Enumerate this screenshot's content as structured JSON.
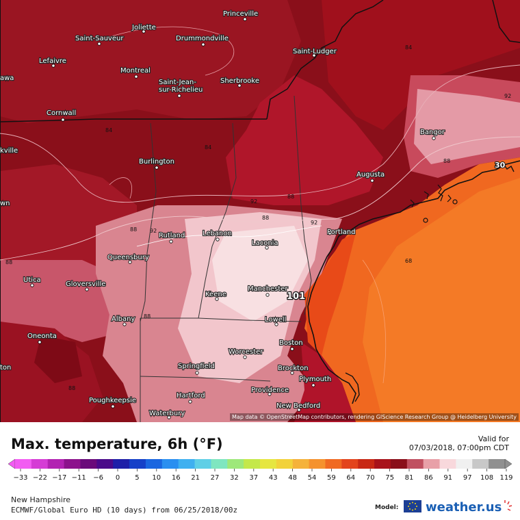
{
  "map": {
    "cities": [
      {
        "name": "Princeville"
      },
      {
        "name": "Joliette"
      },
      {
        "name": "Saint-Sauveur"
      },
      {
        "name": "Drummondville"
      },
      {
        "name": "Lefaivre"
      },
      {
        "name": "Montreal"
      },
      {
        "name": "Saint-Jean-"
      },
      {
        "name": "sur-Richelieu"
      },
      {
        "name": "Sherbrooke"
      },
      {
        "name": "Saint-Ludger"
      },
      {
        "name": "Cornwall"
      },
      {
        "name": "Bangor"
      },
      {
        "name": "Burlington"
      },
      {
        "name": "Augusta"
      },
      {
        "name": "Rutland"
      },
      {
        "name": "Lebanon"
      },
      {
        "name": "Laconia"
      },
      {
        "name": "Portland"
      },
      {
        "name": "Queensbury"
      },
      {
        "name": "Utica"
      },
      {
        "name": "Gloversville"
      },
      {
        "name": "Keene"
      },
      {
        "name": "Manchester"
      },
      {
        "name": "Albany"
      },
      {
        "name": "Lowell"
      },
      {
        "name": "Oneonta"
      },
      {
        "name": "Boston"
      },
      {
        "name": "Worcester"
      },
      {
        "name": "Springfield"
      },
      {
        "name": "Brockton"
      },
      {
        "name": "Plymouth"
      },
      {
        "name": "Poughkeepsie"
      },
      {
        "name": "Hartford"
      },
      {
        "name": "Providence"
      },
      {
        "name": "New Bedford"
      },
      {
        "name": "Waterbury"
      },
      {
        "name": "awa"
      },
      {
        "name": "kville"
      },
      {
        "name": "wn"
      },
      {
        "name": "ton"
      }
    ],
    "iso_labels": [
      "84",
      "92",
      "88",
      "84",
      "84",
      "92",
      "88",
      "88",
      "92",
      "88",
      "92",
      "88",
      "68",
      "88",
      "88"
    ],
    "max_marker": "101",
    "attribution": "Map data © OpenStreetMap contributors, rendering GIScience Research Group @ Heidelberg University"
  },
  "header": {
    "title": "Max. temperature, 6h (°F)",
    "valid_for_label": "Valid for",
    "valid_time": "07/03/2018, 07:00pm CDT"
  },
  "scale": {
    "ticks": [
      "−33",
      "−22",
      "−17",
      "−11",
      "−6",
      "0",
      "5",
      "10",
      "16",
      "21",
      "27",
      "32",
      "37",
      "43",
      "48",
      "54",
      "59",
      "64",
      "70",
      "75",
      "81",
      "86",
      "91",
      "97",
      "108",
      "119"
    ],
    "colors": [
      "#f25cf2",
      "#d53cd5",
      "#b222b2",
      "#8c128c",
      "#6a0a7a",
      "#4a0a8a",
      "#1f1fa8",
      "#1540c8",
      "#1a66e0",
      "#2a8ff0",
      "#3fb0f0",
      "#5fcfe6",
      "#7fe6c0",
      "#9ee87a",
      "#c4e84a",
      "#e6e640",
      "#f2d23a",
      "#f5b23a",
      "#f5922e",
      "#f06a22",
      "#e3441c",
      "#c82814",
      "#a8121a",
      "#8a0f1a",
      "#c05060",
      "#e8a0a8",
      "#f8d8dc",
      "#f0f0f0",
      "#c8c8c8",
      "#909090"
    ]
  },
  "footer": {
    "region": "New Hampshire",
    "model_run": "ECMWF/Global Euro HD (10 days) from 06/25/2018/00z",
    "model_label": "Model:",
    "brand": "weather.us"
  }
}
